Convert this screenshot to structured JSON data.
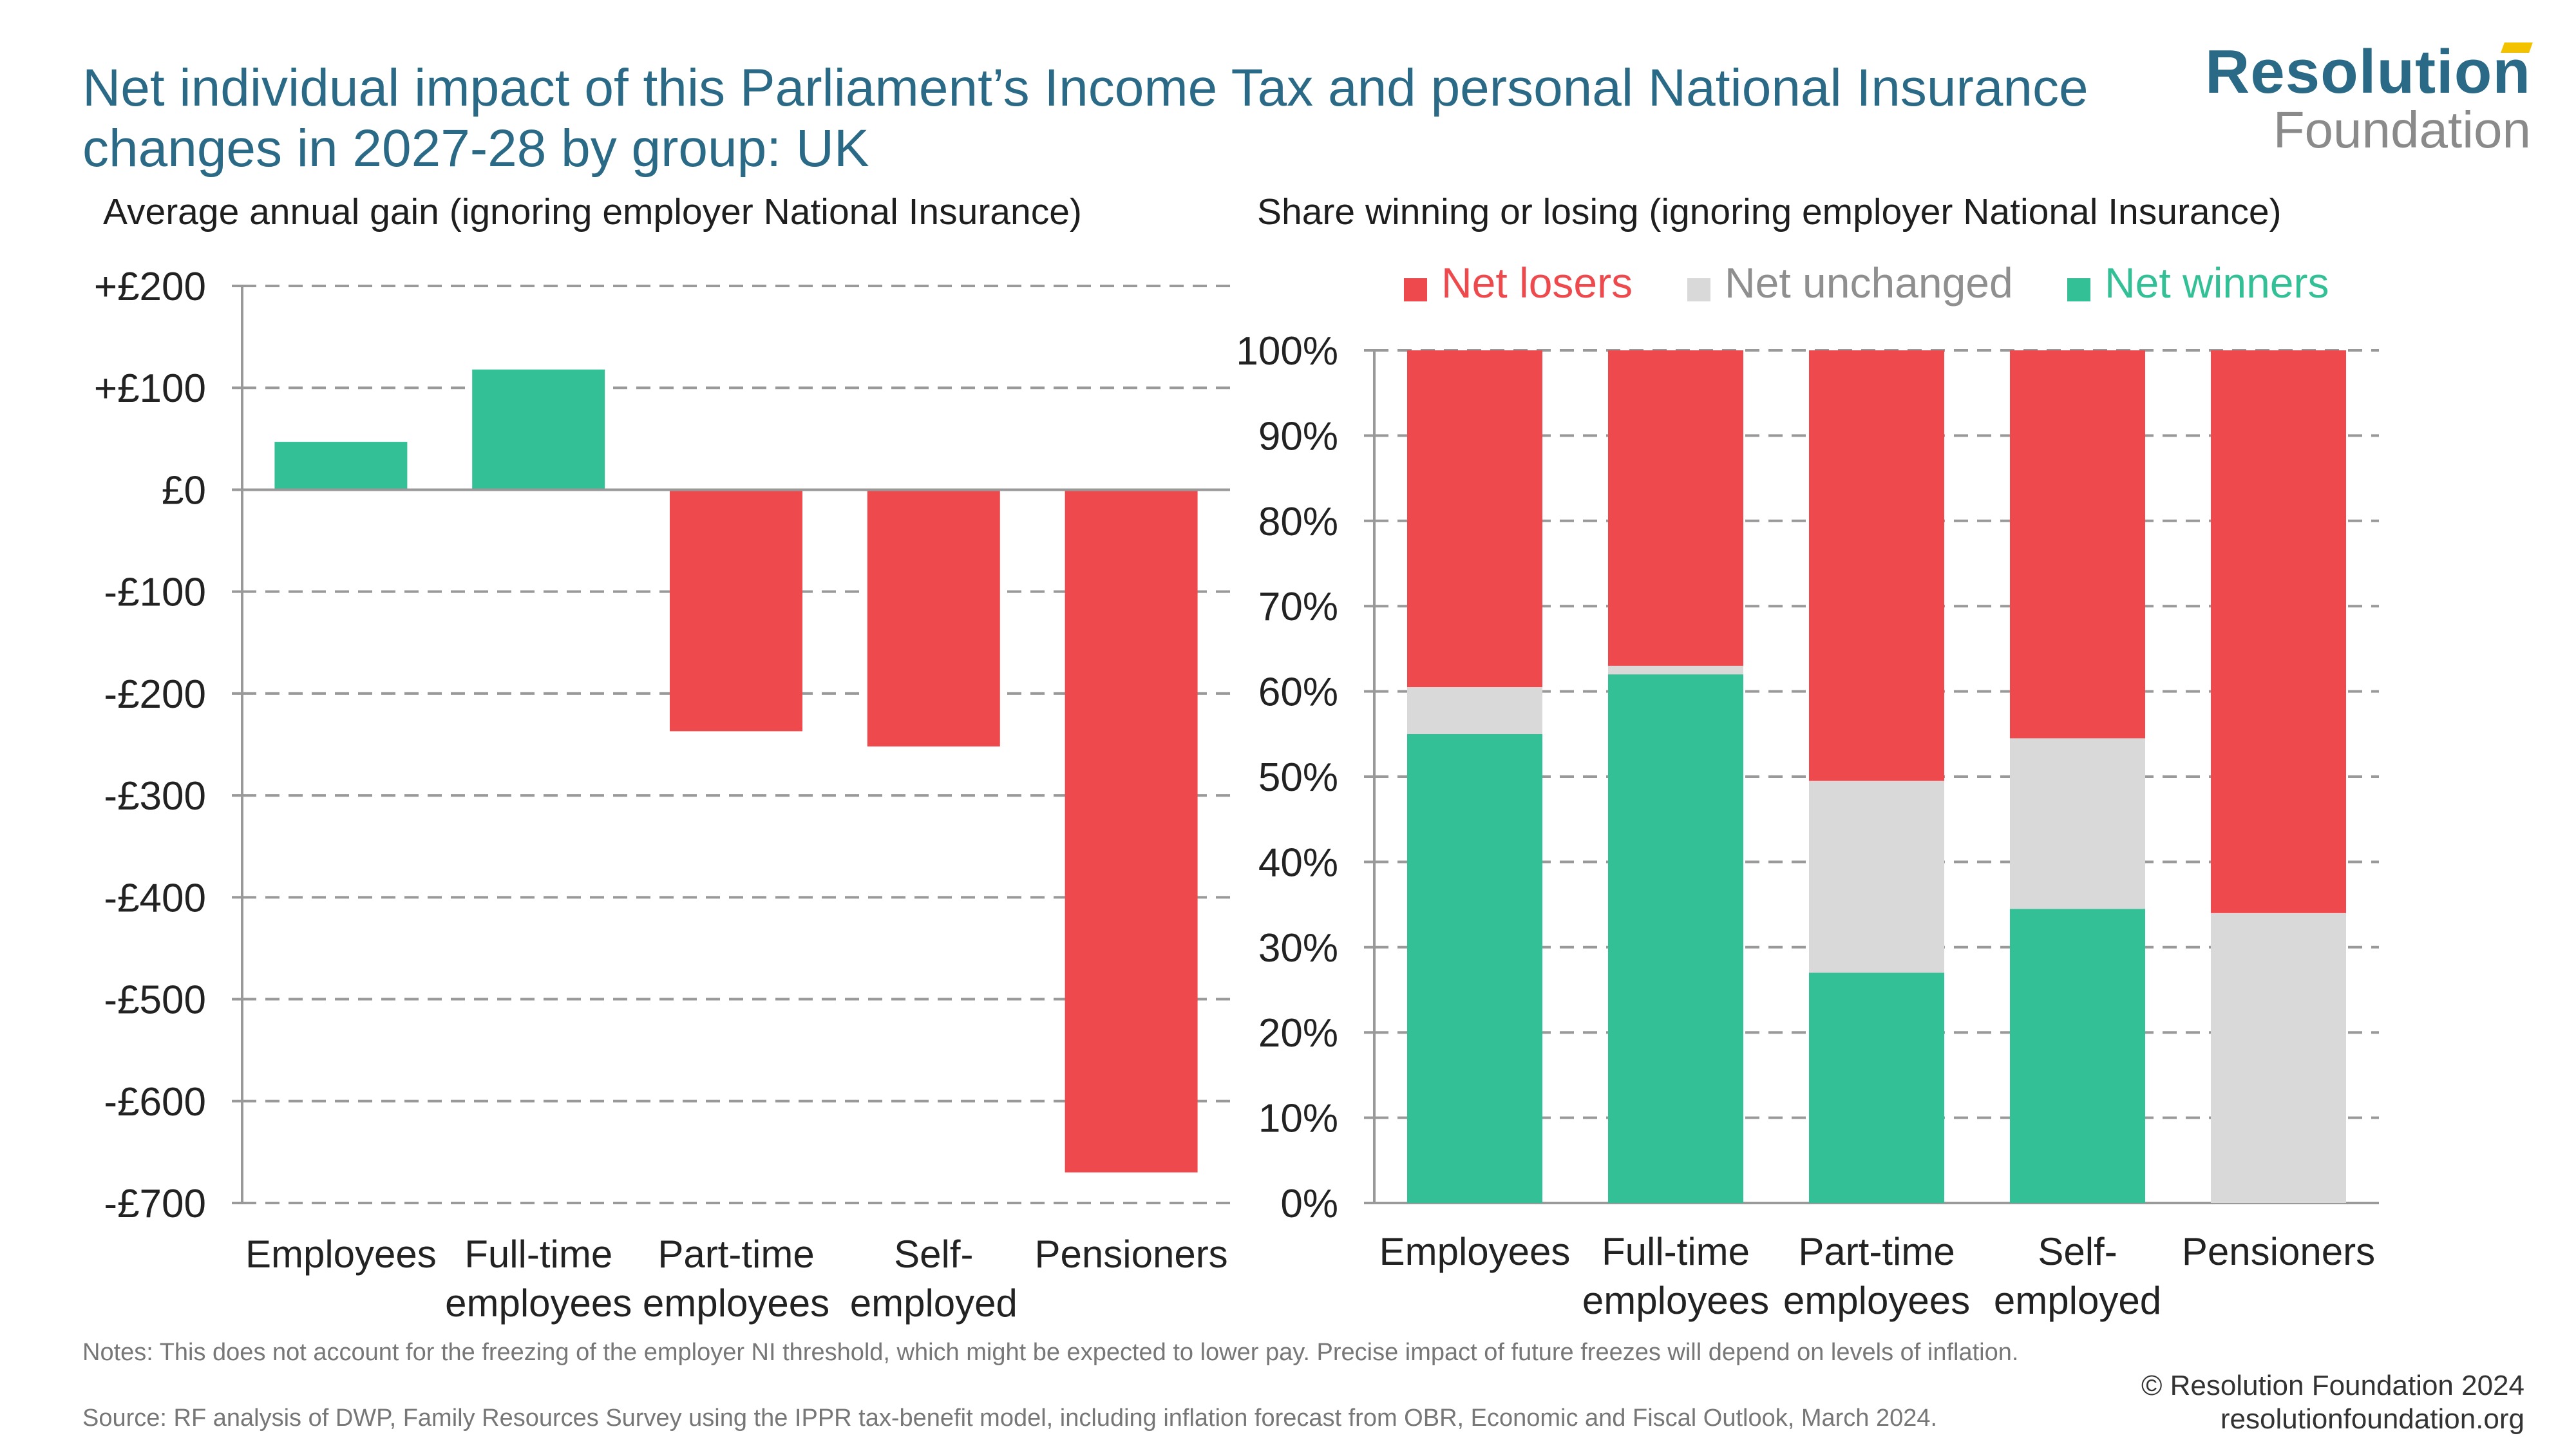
{
  "title": "Net individual impact of this Parliament’s Income Tax and personal National Insurance changes in 2027-28 by group: UK",
  "logo": {
    "line1": "Resolution",
    "line2": "Foundation"
  },
  "colors": {
    "winners": "#34c096",
    "losers": "#ee4a4d",
    "unchanged": "#d9d9d9",
    "title": "#2a6a86"
  },
  "chart_data": [
    {
      "type": "bar",
      "title": "Average annual gain (ignoring employer National Insurance)",
      "categories": [
        [
          "Employees"
        ],
        [
          "Full-time",
          "employees"
        ],
        [
          "Part-time",
          "employees"
        ],
        [
          "Self-",
          "employed"
        ],
        [
          "Pensioners"
        ]
      ],
      "values": [
        47,
        118,
        -237,
        -252,
        -670
      ],
      "ylim": [
        -700,
        200
      ],
      "yticks": [
        200,
        100,
        0,
        -100,
        -200,
        -300,
        -400,
        -500,
        -600,
        -700
      ],
      "ytick_labels": [
        "+£200",
        "+£100",
        "£0",
        "-£100",
        "-£200",
        "-£300",
        "-£400",
        "-£500",
        "-£600",
        "-£700"
      ],
      "grid": true
    },
    {
      "type": "bar",
      "stacked": true,
      "title": "Share winning or losing (ignoring employer National Insurance)",
      "categories": [
        [
          "Employees"
        ],
        [
          "Full-time",
          "employees"
        ],
        [
          "Part-time",
          "employees"
        ],
        [
          "Self-",
          "employed"
        ],
        [
          "Pensioners"
        ]
      ],
      "series": [
        {
          "name": "Net winners",
          "values": [
            55,
            62,
            27,
            34.5,
            0
          ]
        },
        {
          "name": "Net unchanged",
          "values": [
            5.5,
            1,
            22.5,
            20,
            34
          ]
        },
        {
          "name": "Net losers",
          "values": [
            39.5,
            37,
            50.5,
            45.5,
            66
          ]
        }
      ],
      "legend_order": [
        "Net losers",
        "Net unchanged",
        "Net winners"
      ],
      "legend_position": "top",
      "ylim": [
        0,
        100
      ],
      "yticks": [
        100,
        90,
        80,
        70,
        60,
        50,
        40,
        30,
        20,
        10,
        0
      ],
      "ytick_labels": [
        "100%",
        "90%",
        "80%",
        "70%",
        "60%",
        "50%",
        "40%",
        "30%",
        "20%",
        "10%",
        "0%"
      ],
      "grid": true
    }
  ],
  "notes": "Notes: This does not account for the freezing of the employer NI threshold, which might be expected to lower pay. Precise impact of future freezes will depend on levels of inflation.",
  "source": "Source: RF analysis of DWP, Family Resources Survey using the IPPR tax-benefit model, including inflation forecast from OBR, Economic and Fiscal Outlook, March 2024.",
  "copyright": {
    "line1": "© Resolution Foundation 2024",
    "line2": "resolutionfoundation.org"
  }
}
